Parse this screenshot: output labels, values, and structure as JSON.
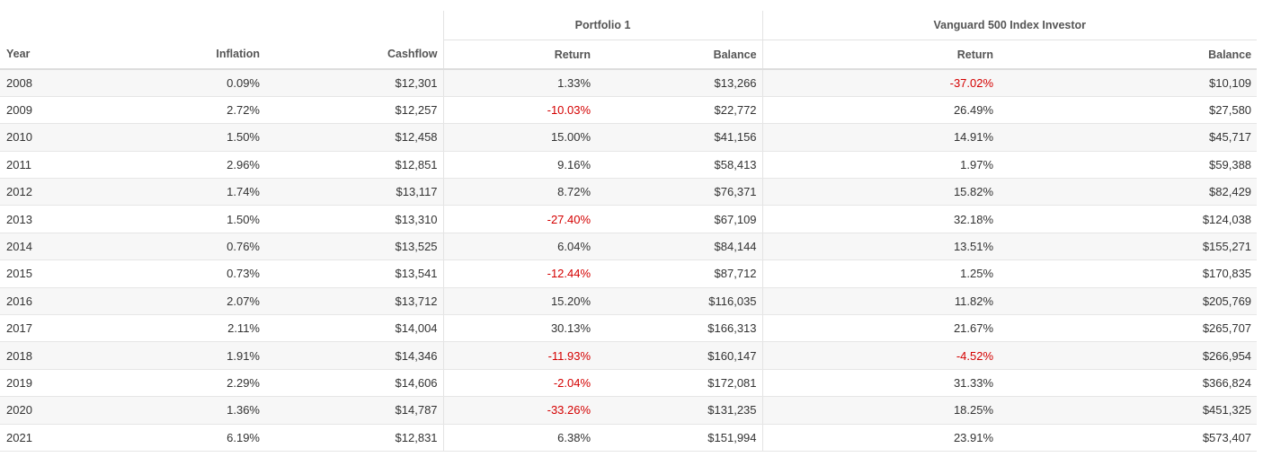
{
  "table": {
    "group_headers": [
      "Portfolio 1",
      "Vanguard 500 Index Investor"
    ],
    "columns": [
      "Year",
      "Inflation",
      "Cashflow",
      "Return",
      "Balance",
      "Return",
      "Balance"
    ],
    "rows": [
      [
        "2008",
        "0.09%",
        "$12,301",
        "1.33%",
        "$13,266",
        "-37.02%",
        "$10,109"
      ],
      [
        "2009",
        "2.72%",
        "$12,257",
        "-10.03%",
        "$22,772",
        "26.49%",
        "$27,580"
      ],
      [
        "2010",
        "1.50%",
        "$12,458",
        "15.00%",
        "$41,156",
        "14.91%",
        "$45,717"
      ],
      [
        "2011",
        "2.96%",
        "$12,851",
        "9.16%",
        "$58,413",
        "1.97%",
        "$59,388"
      ],
      [
        "2012",
        "1.74%",
        "$13,117",
        "8.72%",
        "$76,371",
        "15.82%",
        "$82,429"
      ],
      [
        "2013",
        "1.50%",
        "$13,310",
        "-27.40%",
        "$67,109",
        "32.18%",
        "$124,038"
      ],
      [
        "2014",
        "0.76%",
        "$13,525",
        "6.04%",
        "$84,144",
        "13.51%",
        "$155,271"
      ],
      [
        "2015",
        "0.73%",
        "$13,541",
        "-12.44%",
        "$87,712",
        "1.25%",
        "$170,835"
      ],
      [
        "2016",
        "2.07%",
        "$13,712",
        "15.20%",
        "$116,035",
        "11.82%",
        "$205,769"
      ],
      [
        "2017",
        "2.11%",
        "$14,004",
        "30.13%",
        "$166,313",
        "21.67%",
        "$265,707"
      ],
      [
        "2018",
        "1.91%",
        "$14,346",
        "-11.93%",
        "$160,147",
        "-4.52%",
        "$266,954"
      ],
      [
        "2019",
        "2.29%",
        "$14,606",
        "-2.04%",
        "$172,081",
        "31.33%",
        "$366,824"
      ],
      [
        "2020",
        "1.36%",
        "$14,787",
        "-33.26%",
        "$131,235",
        "18.25%",
        "$451,325"
      ],
      [
        "2021",
        "6.19%",
        "$12,831",
        "6.38%",
        "$151,994",
        "23.91%",
        "$573,407"
      ]
    ]
  }
}
